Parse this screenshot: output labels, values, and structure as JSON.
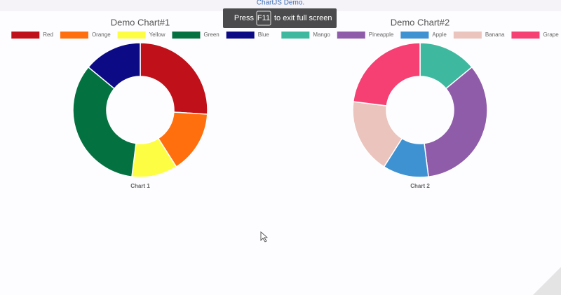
{
  "page": {
    "header": "ChartJS Demo.",
    "notice": {
      "before": "Press",
      "key": "F11",
      "after": "to exit full screen"
    }
  },
  "chart_data": [
    {
      "type": "doughnut",
      "title": "Demo Chart#1",
      "label": "Chart 1",
      "categories": [
        "Red",
        "Orange",
        "Yellow",
        "Green",
        "Blue"
      ],
      "values": [
        26,
        15,
        11,
        34,
        14
      ],
      "colors": [
        "#c0101a",
        "#ff6f0e",
        "#fdfd43",
        "#037240",
        "#0c0b85"
      ]
    },
    {
      "type": "doughnut",
      "title": "Demo Chart#2",
      "label": "Chart 2",
      "categories": [
        "Mango",
        "Pineapple",
        "Apple",
        "Banana",
        "Grape"
      ],
      "values": [
        14,
        34,
        11,
        18,
        23
      ],
      "colors": [
        "#3eb99f",
        "#8f5ca9",
        "#3e92d2",
        "#eac4bd",
        "#f63f72"
      ]
    }
  ]
}
